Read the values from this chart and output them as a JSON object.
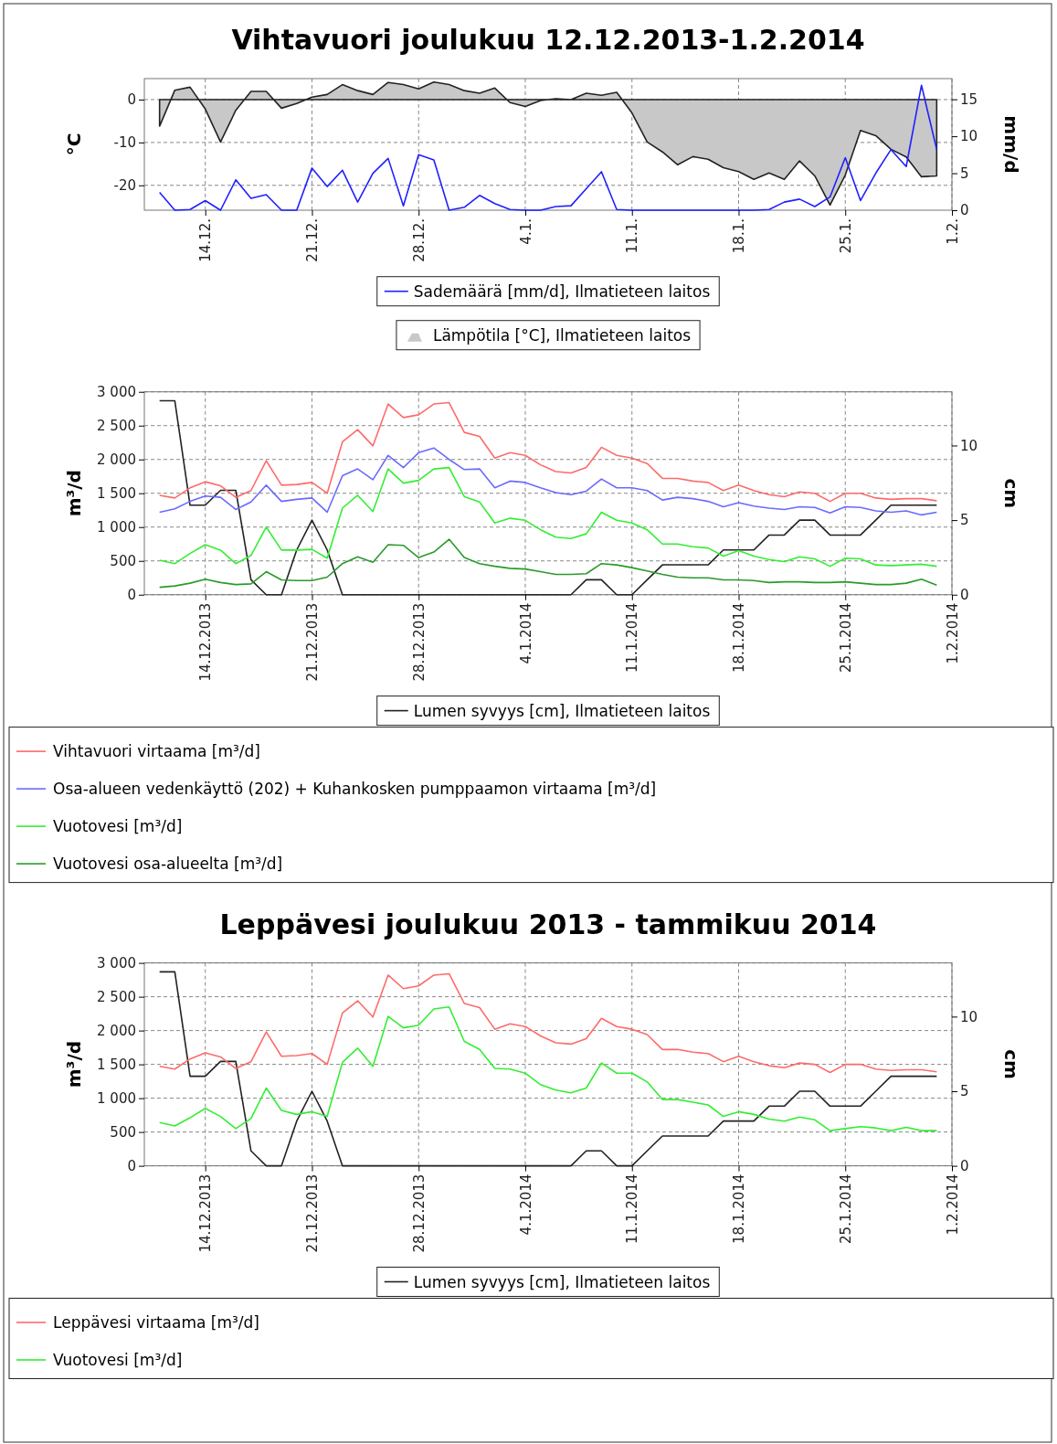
{
  "chart_data": [
    {
      "type": "line",
      "title": "Vihtavuori joulukuu 12.12.2013-1.2.2014",
      "ylabel": "°C",
      "y2label": "mm/d",
      "grid": true,
      "legend": "bottom",
      "x": [
        "2013-12-11",
        "2013-12-12",
        "2013-12-13",
        "2013-12-14",
        "2013-12-15",
        "2013-12-16",
        "2013-12-17",
        "2013-12-18",
        "2013-12-19",
        "2013-12-20",
        "2013-12-21",
        "2013-12-22",
        "2013-12-23",
        "2013-12-24",
        "2013-12-25",
        "2013-12-26",
        "2013-12-27",
        "2013-12-28",
        "2013-12-29",
        "2013-12-30",
        "2013-12-31",
        "2014-01-01",
        "2014-01-02",
        "2014-01-03",
        "2014-01-04",
        "2014-01-05",
        "2014-01-06",
        "2014-01-07",
        "2014-01-08",
        "2014-01-09",
        "2014-01-10",
        "2014-01-11",
        "2014-01-12",
        "2014-01-13",
        "2014-01-14",
        "2014-01-15",
        "2014-01-16",
        "2014-01-17",
        "2014-01-18",
        "2014-01-19",
        "2014-01-20",
        "2014-01-21",
        "2014-01-22",
        "2014-01-23",
        "2014-01-24",
        "2014-01-25",
        "2014-01-26",
        "2014-01-27",
        "2014-01-28",
        "2014-01-29",
        "2014-01-30",
        "2014-01-31"
      ],
      "xlim": [
        "2013-12-10",
        "2014-02-01"
      ],
      "xticks": [
        {
          "value": "2013-12-14",
          "label": "14.12."
        },
        {
          "value": "2013-12-21",
          "label": "21.12."
        },
        {
          "value": "2013-12-28",
          "label": "28.12."
        },
        {
          "value": "2014-01-04",
          "label": "4.1."
        },
        {
          "value": "2014-01-11",
          "label": "11.1."
        },
        {
          "value": "2014-01-18",
          "label": "18.1."
        },
        {
          "value": "2014-01-25",
          "label": "25.1."
        },
        {
          "value": "2014-02-01",
          "label": "1.2."
        }
      ],
      "ylim": [
        -25.8,
        4.9
      ],
      "yticks": [
        -20,
        -10,
        0
      ],
      "y2lim": [
        0,
        17.8
      ],
      "y2ticks": [
        0,
        5,
        10,
        15
      ],
      "series": [
        {
          "name": "Sademäärä [mm/d], Ilmatieteen laitos",
          "color": "#2020ff",
          "axis": "y2",
          "values": [
            2.4,
            0,
            0.1,
            1.3,
            0,
            4.1,
            1.6,
            2.1,
            0,
            0,
            5.7,
            3.2,
            5.4,
            1.1,
            5,
            7,
            0.6,
            7.5,
            6.8,
            0,
            0.4,
            2,
            0.9,
            0.1,
            0,
            0,
            0.5,
            0.6,
            2.9,
            5.2,
            0.1,
            0,
            0,
            0,
            0,
            0,
            0,
            0,
            0,
            0,
            0.1,
            1.1,
            1.5,
            0.5,
            1.8,
            7.1,
            1.3,
            5,
            8.2,
            5.9,
            16.9,
            8.2
          ]
        },
        {
          "type": "area",
          "name": "Lämpötila [°C], Ilmatieteen laitos",
          "color": "#c8c8c8",
          "values": [
            -6.2,
            2.2,
            2.9,
            -2.2,
            -9.9,
            -2.5,
            1.9,
            1.9,
            -2,
            -0.9,
            0.6,
            1.2,
            3.5,
            2.1,
            1.2,
            4,
            3.5,
            2.5,
            4.1,
            3.5,
            2.1,
            1.5,
            2.7,
            -0.7,
            -1.6,
            -0.2,
            0.2,
            0,
            1.5,
            1,
            1.7,
            -3.1,
            -9.9,
            -12.2,
            -15.2,
            -13.3,
            -13.9,
            -15.9,
            -16.8,
            -18.6,
            -17.1,
            -18.6,
            -14.3,
            -17.8,
            -24.6,
            -17.6,
            -7.2,
            -8.4,
            -11.6,
            -13.4,
            -18,
            -17.8
          ]
        }
      ]
    },
    {
      "type": "line",
      "ylabel": "m³/d",
      "y2label": "cm",
      "grid": true,
      "legend": "bottom",
      "x": [
        "2013-12-11",
        "2013-12-12",
        "2013-12-13",
        "2013-12-14",
        "2013-12-15",
        "2013-12-16",
        "2013-12-17",
        "2013-12-18",
        "2013-12-19",
        "2013-12-20",
        "2013-12-21",
        "2013-12-22",
        "2013-12-23",
        "2013-12-24",
        "2013-12-25",
        "2013-12-26",
        "2013-12-27",
        "2013-12-28",
        "2013-12-29",
        "2013-12-30",
        "2013-12-31",
        "2014-01-01",
        "2014-01-02",
        "2014-01-03",
        "2014-01-04",
        "2014-01-05",
        "2014-01-06",
        "2014-01-07",
        "2014-01-08",
        "2014-01-09",
        "2014-01-10",
        "2014-01-11",
        "2014-01-12",
        "2014-01-13",
        "2014-01-14",
        "2014-01-15",
        "2014-01-16",
        "2014-01-17",
        "2014-01-18",
        "2014-01-19",
        "2014-01-20",
        "2014-01-21",
        "2014-01-22",
        "2014-01-23",
        "2014-01-24",
        "2014-01-25",
        "2014-01-26",
        "2014-01-27",
        "2014-01-28",
        "2014-01-29",
        "2014-01-30",
        "2014-01-31"
      ],
      "xlim": [
        "2013-12-10",
        "2014-02-01"
      ],
      "xticks": [
        {
          "value": "2013-12-14",
          "label": "14.12.2013"
        },
        {
          "value": "2013-12-21",
          "label": "21.12.2013"
        },
        {
          "value": "2013-12-28",
          "label": "28.12.2013"
        },
        {
          "value": "2014-01-04",
          "label": "4.1.2014"
        },
        {
          "value": "2014-01-11",
          "label": "11.1.2014"
        },
        {
          "value": "2014-01-18",
          "label": "18.1.2014"
        },
        {
          "value": "2014-01-25",
          "label": "25.1.2014"
        },
        {
          "value": "2014-02-01",
          "label": "1.2.2014"
        }
      ],
      "ylim": [
        0,
        3000
      ],
      "yticks": [
        0,
        500,
        {
          "value": 1000,
          "label": "1 000"
        },
        {
          "value": 1500,
          "label": "1 500"
        },
        {
          "value": 2000,
          "label": "2 000"
        },
        {
          "value": 2500,
          "label": "2 500"
        },
        {
          "value": 3000,
          "label": "3 000"
        }
      ],
      "y2lim": [
        0,
        13.6
      ],
      "y2ticks": [
        0,
        5,
        10
      ],
      "series": [
        {
          "name": "Lumen syvyys [cm], Ilmatieteen laitos",
          "color": "#222222",
          "axis": "y2",
          "values": [
            13,
            13,
            6,
            6,
            7,
            7,
            1,
            0,
            0,
            3,
            5,
            3,
            0,
            0,
            0,
            0,
            0,
            0,
            0,
            0,
            0,
            0,
            0,
            0,
            0,
            0,
            0,
            0,
            1,
            1,
            0,
            0,
            1,
            2,
            2,
            2,
            2,
            3,
            3,
            3,
            4,
            4,
            5,
            5,
            4,
            4,
            4,
            5,
            6,
            6,
            6,
            6
          ]
        },
        {
          "name": "Vihtavuori virtaama [m³/d]",
          "color": "#ff6a6a",
          "values": [
            1470,
            1430,
            1580,
            1670,
            1610,
            1440,
            1540,
            1980,
            1620,
            1630,
            1660,
            1500,
            2260,
            2440,
            2200,
            2820,
            2620,
            2660,
            2820,
            2840,
            2400,
            2340,
            2020,
            2100,
            2060,
            1920,
            1820,
            1800,
            1880,
            2180,
            2060,
            2020,
            1940,
            1720,
            1720,
            1680,
            1660,
            1540,
            1620,
            1540,
            1480,
            1450,
            1520,
            1500,
            1380,
            1500,
            1500,
            1430,
            1410,
            1420,
            1420,
            1390
          ]
        },
        {
          "name": "Osa-alueen vedenkäyttö (202) + Kuhankosken pumppaamon virtaama [m³/d]",
          "color": "#6a6aff",
          "values": [
            1220,
            1270,
            1380,
            1460,
            1440,
            1260,
            1370,
            1620,
            1380,
            1410,
            1430,
            1220,
            1760,
            1860,
            1700,
            2060,
            1880,
            2100,
            2170,
            2000,
            1850,
            1860,
            1580,
            1680,
            1660,
            1580,
            1510,
            1480,
            1530,
            1710,
            1580,
            1580,
            1540,
            1400,
            1440,
            1420,
            1380,
            1300,
            1360,
            1310,
            1280,
            1260,
            1300,
            1290,
            1210,
            1300,
            1290,
            1240,
            1220,
            1240,
            1180,
            1220
          ]
        },
        {
          "name": "Vuotovesi [m³/d]",
          "color": "#33ee33",
          "values": [
            510,
            460,
            610,
            740,
            660,
            460,
            580,
            1000,
            660,
            660,
            670,
            540,
            1280,
            1470,
            1230,
            1860,
            1650,
            1690,
            1860,
            1880,
            1450,
            1370,
            1060,
            1130,
            1100,
            960,
            850,
            830,
            900,
            1220,
            1100,
            1060,
            960,
            750,
            750,
            710,
            690,
            570,
            650,
            570,
            520,
            490,
            560,
            530,
            420,
            540,
            530,
            440,
            430,
            440,
            450,
            420
          ]
        },
        {
          "name": "Vuotovesi osa-alueelta [m³/d]",
          "color": "#2a9a2a",
          "values": [
            110,
            130,
            170,
            230,
            180,
            150,
            160,
            340,
            220,
            210,
            210,
            260,
            460,
            560,
            480,
            740,
            730,
            550,
            630,
            820,
            550,
            460,
            420,
            390,
            380,
            340,
            300,
            300,
            310,
            460,
            440,
            400,
            350,
            300,
            260,
            250,
            250,
            220,
            220,
            210,
            180,
            190,
            190,
            180,
            180,
            190,
            170,
            150,
            150,
            170,
            230,
            140
          ]
        }
      ]
    },
    {
      "type": "line",
      "title": "Leppävesi joulukuu 2013 - tammikuu 2014",
      "ylabel": "m³/d",
      "y2label": "cm",
      "grid": true,
      "legend": "bottom",
      "x": [
        "2013-12-11",
        "2013-12-12",
        "2013-12-13",
        "2013-12-14",
        "2013-12-15",
        "2013-12-16",
        "2013-12-17",
        "2013-12-18",
        "2013-12-19",
        "2013-12-20",
        "2013-12-21",
        "2013-12-22",
        "2013-12-23",
        "2013-12-24",
        "2013-12-25",
        "2013-12-26",
        "2013-12-27",
        "2013-12-28",
        "2013-12-29",
        "2013-12-30",
        "2013-12-31",
        "2014-01-01",
        "2014-01-02",
        "2014-01-03",
        "2014-01-04",
        "2014-01-05",
        "2014-01-06",
        "2014-01-07",
        "2014-01-08",
        "2014-01-09",
        "2014-01-10",
        "2014-01-11",
        "2014-01-12",
        "2014-01-13",
        "2014-01-14",
        "2014-01-15",
        "2014-01-16",
        "2014-01-17",
        "2014-01-18",
        "2014-01-19",
        "2014-01-20",
        "2014-01-21",
        "2014-01-22",
        "2014-01-23",
        "2014-01-24",
        "2014-01-25",
        "2014-01-26",
        "2014-01-27",
        "2014-01-28",
        "2014-01-29",
        "2014-01-30",
        "2014-01-31"
      ],
      "xlim": [
        "2013-12-10",
        "2014-02-01"
      ],
      "xticks": [
        {
          "value": "2013-12-14",
          "label": "14.12.2013"
        },
        {
          "value": "2013-12-21",
          "label": "21.12.2013"
        },
        {
          "value": "2013-12-28",
          "label": "28.12.2013"
        },
        {
          "value": "2014-01-04",
          "label": "4.1.2014"
        },
        {
          "value": "2014-01-11",
          "label": "11.1.2014"
        },
        {
          "value": "2014-01-18",
          "label": "18.1.2014"
        },
        {
          "value": "2014-01-25",
          "label": "25.1.2014"
        },
        {
          "value": "2014-02-01",
          "label": "1.2.2014"
        }
      ],
      "ylim": [
        0,
        3000
      ],
      "yticks": [
        0,
        500,
        {
          "value": 1000,
          "label": "1 000"
        },
        {
          "value": 1500,
          "label": "1 500"
        },
        {
          "value": 2000,
          "label": "2 000"
        },
        {
          "value": 2500,
          "label": "2 500"
        },
        {
          "value": 3000,
          "label": "3 000"
        }
      ],
      "y2lim": [
        0,
        13.6
      ],
      "y2ticks": [
        0,
        5,
        10
      ],
      "series": [
        {
          "name": "Lumen syvyys [cm], Ilmatieteen laitos",
          "color": "#222222",
          "axis": "y2",
          "values": [
            13,
            13,
            6,
            6,
            7,
            7,
            1,
            0,
            0,
            3,
            5,
            3,
            0,
            0,
            0,
            0,
            0,
            0,
            0,
            0,
            0,
            0,
            0,
            0,
            0,
            0,
            0,
            0,
            1,
            1,
            0,
            0,
            1,
            2,
            2,
            2,
            2,
            3,
            3,
            3,
            4,
            4,
            5,
            5,
            4,
            4,
            4,
            5,
            6,
            6,
            6,
            6
          ]
        },
        {
          "name": "Leppävesi virtaama [m³/d]",
          "color": "#ff6a6a",
          "values": [
            1470,
            1430,
            1580,
            1670,
            1610,
            1440,
            1540,
            1980,
            1620,
            1630,
            1660,
            1500,
            2260,
            2440,
            2200,
            2820,
            2620,
            2660,
            2820,
            2840,
            2400,
            2340,
            2020,
            2100,
            2060,
            1920,
            1820,
            1800,
            1880,
            2180,
            2060,
            2020,
            1940,
            1720,
            1720,
            1680,
            1660,
            1540,
            1620,
            1540,
            1480,
            1450,
            1520,
            1500,
            1380,
            1500,
            1500,
            1430,
            1410,
            1420,
            1420,
            1390
          ]
        },
        {
          "name": "Vuotovesi [m³/d]",
          "color": "#33ee33",
          "values": [
            640,
            590,
            710,
            850,
            730,
            550,
            700,
            1150,
            820,
            760,
            800,
            730,
            1530,
            1740,
            1470,
            2210,
            2040,
            2080,
            2320,
            2350,
            1840,
            1720,
            1440,
            1430,
            1370,
            1200,
            1120,
            1080,
            1150,
            1520,
            1370,
            1370,
            1240,
            980,
            980,
            940,
            900,
            730,
            800,
            760,
            690,
            660,
            720,
            680,
            520,
            550,
            580,
            560,
            520,
            570,
            520,
            520
          ]
        }
      ]
    }
  ]
}
